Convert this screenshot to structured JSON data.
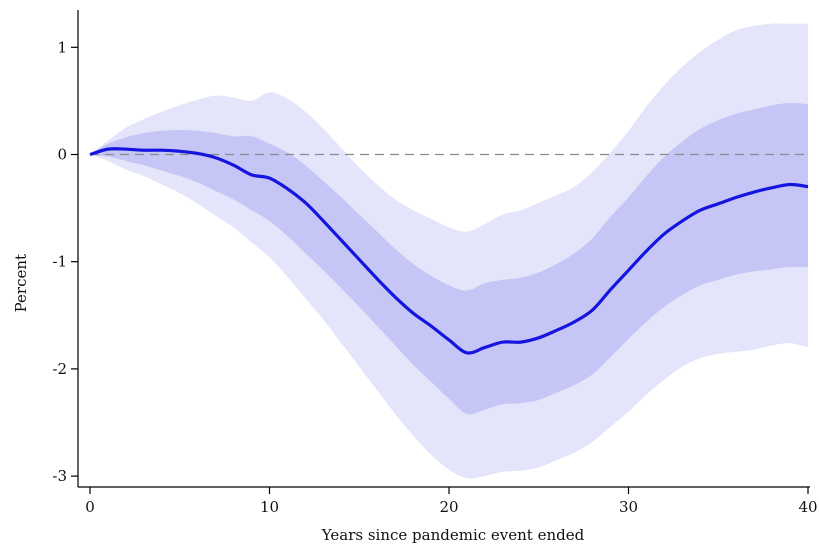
{
  "chart_data": {
    "type": "line",
    "title": "",
    "xlabel": "Years since pandemic event ended",
    "ylabel": "Percent",
    "xlim": [
      0,
      40
    ],
    "ylim": [
      -3.1,
      1.35
    ],
    "x_ticks": [
      0,
      10,
      20,
      30,
      40
    ],
    "y_ticks": [
      -3,
      -2,
      -1,
      0,
      1
    ],
    "x_tick_labels": [
      "0",
      "10",
      "20",
      "30",
      "40"
    ],
    "y_tick_labels": [
      "-3",
      "-2",
      "-1",
      "0",
      "1"
    ],
    "reference_line": {
      "y": 0,
      "style": "dashed",
      "color": "#8a8a8a"
    },
    "grid": false,
    "colors": {
      "line": "#1515e0",
      "inner_band": "#c6c6f6",
      "outer_band": "#e4e4fb"
    },
    "x": [
      0,
      1,
      2,
      3,
      4,
      5,
      6,
      7,
      8,
      9,
      10,
      11,
      12,
      13,
      14,
      15,
      16,
      17,
      18,
      19,
      20,
      21,
      22,
      23,
      24,
      25,
      26,
      27,
      28,
      29,
      30,
      31,
      32,
      33,
      34,
      35,
      36,
      37,
      38,
      39,
      40
    ],
    "series": [
      {
        "values": [
          0.0,
          0.05,
          0.05,
          0.04,
          0.04,
          0.03,
          0.01,
          -0.03,
          -0.1,
          -0.19,
          -0.22,
          -0.32,
          -0.45,
          -0.62,
          -0.8,
          -0.98,
          -1.16,
          -1.33,
          -1.48,
          -1.6,
          -1.73,
          -1.85,
          -1.8,
          -1.75,
          -1.75,
          -1.71,
          -1.64,
          -1.56,
          -1.45,
          -1.26,
          -1.08,
          -0.9,
          -0.74,
          -0.62,
          -0.52,
          -0.46,
          -0.4,
          -0.35,
          -0.31,
          -0.28,
          -0.3
        ]
      },
      {
        "values_lower": [
          0.0,
          -0.02,
          -0.06,
          -0.1,
          -0.15,
          -0.2,
          -0.26,
          -0.34,
          -0.42,
          -0.52,
          -0.62,
          -0.76,
          -0.92,
          -1.08,
          -1.25,
          -1.42,
          -1.6,
          -1.78,
          -1.96,
          -2.12,
          -2.28,
          -2.42,
          -2.38,
          -2.33,
          -2.32,
          -2.29,
          -2.22,
          -2.15,
          -2.05,
          -1.89,
          -1.72,
          -1.56,
          -1.42,
          -1.31,
          -1.22,
          -1.17,
          -1.12,
          -1.09,
          -1.07,
          -1.05,
          -1.05
        ],
        "values_upper": [
          0.0,
          0.1,
          0.16,
          0.2,
          0.22,
          0.23,
          0.22,
          0.2,
          0.17,
          0.17,
          0.1,
          0.02,
          -0.1,
          -0.25,
          -0.4,
          -0.56,
          -0.72,
          -0.88,
          -1.02,
          -1.13,
          -1.22,
          -1.27,
          -1.2,
          -1.17,
          -1.15,
          -1.1,
          -1.02,
          -0.92,
          -0.78,
          -0.58,
          -0.4,
          -0.2,
          -0.02,
          0.12,
          0.24,
          0.32,
          0.38,
          0.42,
          0.46,
          0.48,
          0.47
        ]
      },
      {
        "values_lower": [
          0.0,
          -0.06,
          -0.14,
          -0.2,
          -0.28,
          -0.36,
          -0.46,
          -0.57,
          -0.68,
          -0.82,
          -0.96,
          -1.14,
          -1.34,
          -1.54,
          -1.76,
          -1.98,
          -2.2,
          -2.42,
          -2.62,
          -2.8,
          -2.94,
          -3.02,
          -3.0,
          -2.96,
          -2.95,
          -2.92,
          -2.85,
          -2.78,
          -2.68,
          -2.54,
          -2.4,
          -2.24,
          -2.1,
          -1.98,
          -1.9,
          -1.86,
          -1.84,
          -1.82,
          -1.78,
          -1.76,
          -1.8
        ],
        "values_upper": [
          0.0,
          0.13,
          0.25,
          0.33,
          0.4,
          0.46,
          0.51,
          0.55,
          0.53,
          0.5,
          0.58,
          0.52,
          0.4,
          0.24,
          0.06,
          -0.12,
          -0.28,
          -0.42,
          -0.52,
          -0.6,
          -0.68,
          -0.72,
          -0.65,
          -0.56,
          -0.52,
          -0.45,
          -0.38,
          -0.3,
          -0.16,
          0.02,
          0.22,
          0.45,
          0.65,
          0.82,
          0.96,
          1.07,
          1.16,
          1.2,
          1.22,
          1.22,
          1.22
        ]
      }
    ]
  }
}
